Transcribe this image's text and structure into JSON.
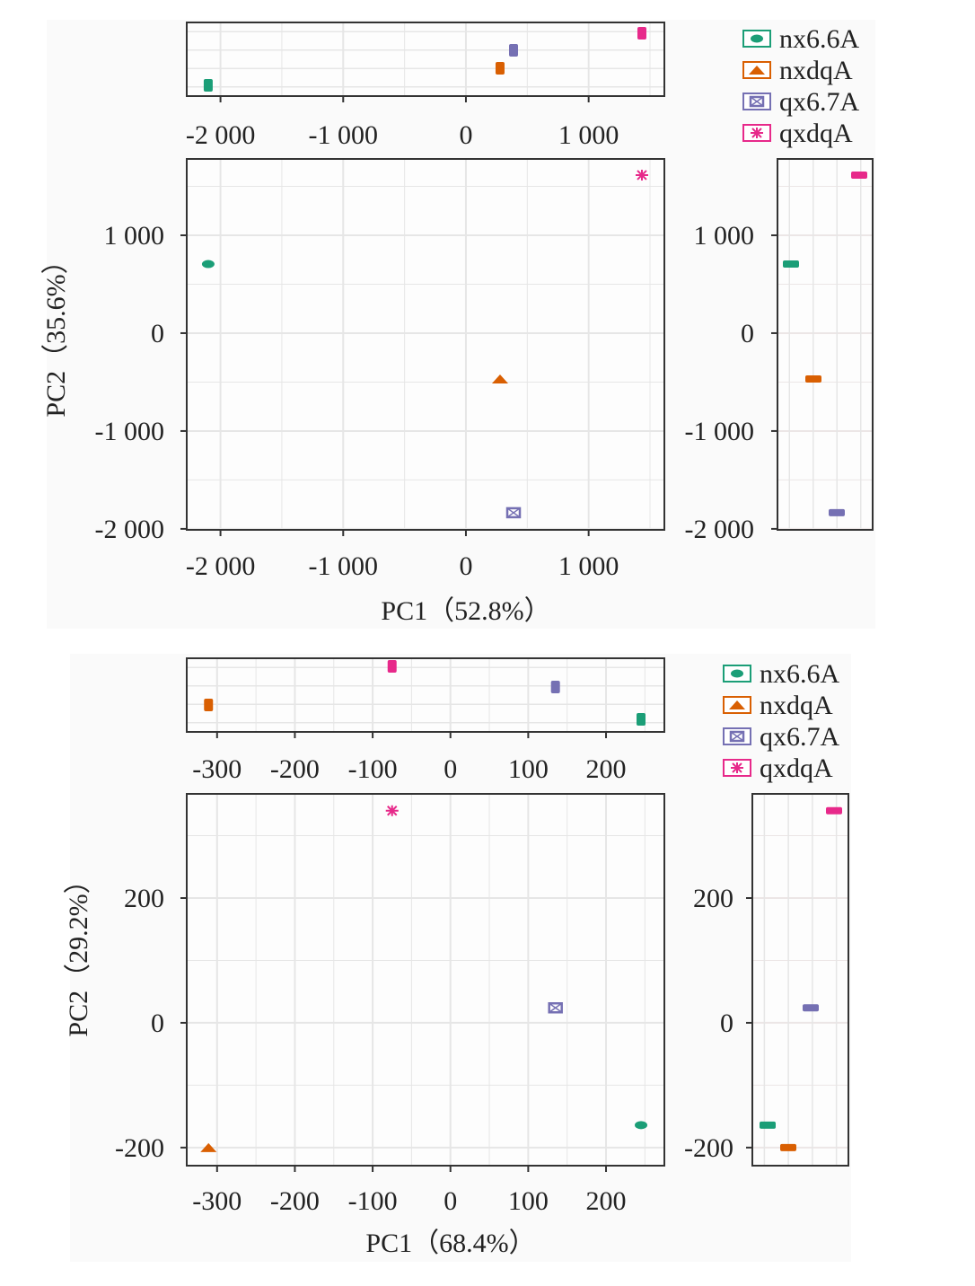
{
  "chart_data": [
    {
      "type": "scatter",
      "xlabel": "PC1（52.8%）",
      "ylabel": "PC2（35.6%）",
      "xlim": [
        -2275,
        1617
      ],
      "ylim": [
        -2010,
        1780
      ],
      "xticks": [
        -2000,
        -1000,
        0,
        1000
      ],
      "xtick_labels": [
        "-2 000",
        "-1 000",
        "0",
        "1 000"
      ],
      "yticks": [
        1000,
        0,
        -1000,
        -2000
      ],
      "ytick_labels": [
        "1 000",
        "0",
        "-1 000",
        "-2 000"
      ],
      "grid": true,
      "legend_position": "top-right",
      "marginal": "boxplot",
      "series": [
        {
          "name": "nx6.6A",
          "color": "#1b9e77",
          "marker": "circle",
          "x": [
            -2100
          ],
          "y": [
            706
          ]
        },
        {
          "name": "nxdqA",
          "color": "#d95f02",
          "marker": "triangle",
          "x": [
            278
          ],
          "y": [
            -468
          ]
        },
        {
          "name": "qx6.7A",
          "color": "#7570b3",
          "marker": "square-cross",
          "x": [
            388
          ],
          "y": [
            -1835
          ]
        },
        {
          "name": "qxdqA",
          "color": "#e7298a",
          "marker": "asterisk",
          "x": [
            1434
          ],
          "y": [
            1615
          ]
        }
      ]
    },
    {
      "type": "scatter",
      "xlabel": "PC1（68.4%）",
      "ylabel": "PC2（29.2%）",
      "xlim": [
        -339,
        275
      ],
      "ylim": [
        -229,
        367
      ],
      "xticks": [
        -300,
        -200,
        -100,
        0,
        100,
        200
      ],
      "xtick_labels": [
        "-300",
        "-200",
        "-100",
        "0",
        "100",
        "200"
      ],
      "yticks": [
        200,
        0,
        -200
      ],
      "ytick_labels": [
        "200",
        "0",
        "-200"
      ],
      "grid": true,
      "legend_position": "top-right",
      "marginal": "boxplot",
      "series": [
        {
          "name": "nx6.6A",
          "color": "#1b9e77",
          "marker": "circle",
          "x": [
            245
          ],
          "y": [
            -164
          ]
        },
        {
          "name": "nxdqA",
          "color": "#d95f02",
          "marker": "triangle",
          "x": [
            -311
          ],
          "y": [
            -200
          ]
        },
        {
          "name": "qx6.7A",
          "color": "#7570b3",
          "marker": "square-cross",
          "x": [
            135
          ],
          "y": [
            24
          ]
        },
        {
          "name": "qxdqA",
          "color": "#e7298a",
          "marker": "asterisk",
          "x": [
            -75
          ],
          "y": [
            340
          ]
        }
      ]
    }
  ]
}
